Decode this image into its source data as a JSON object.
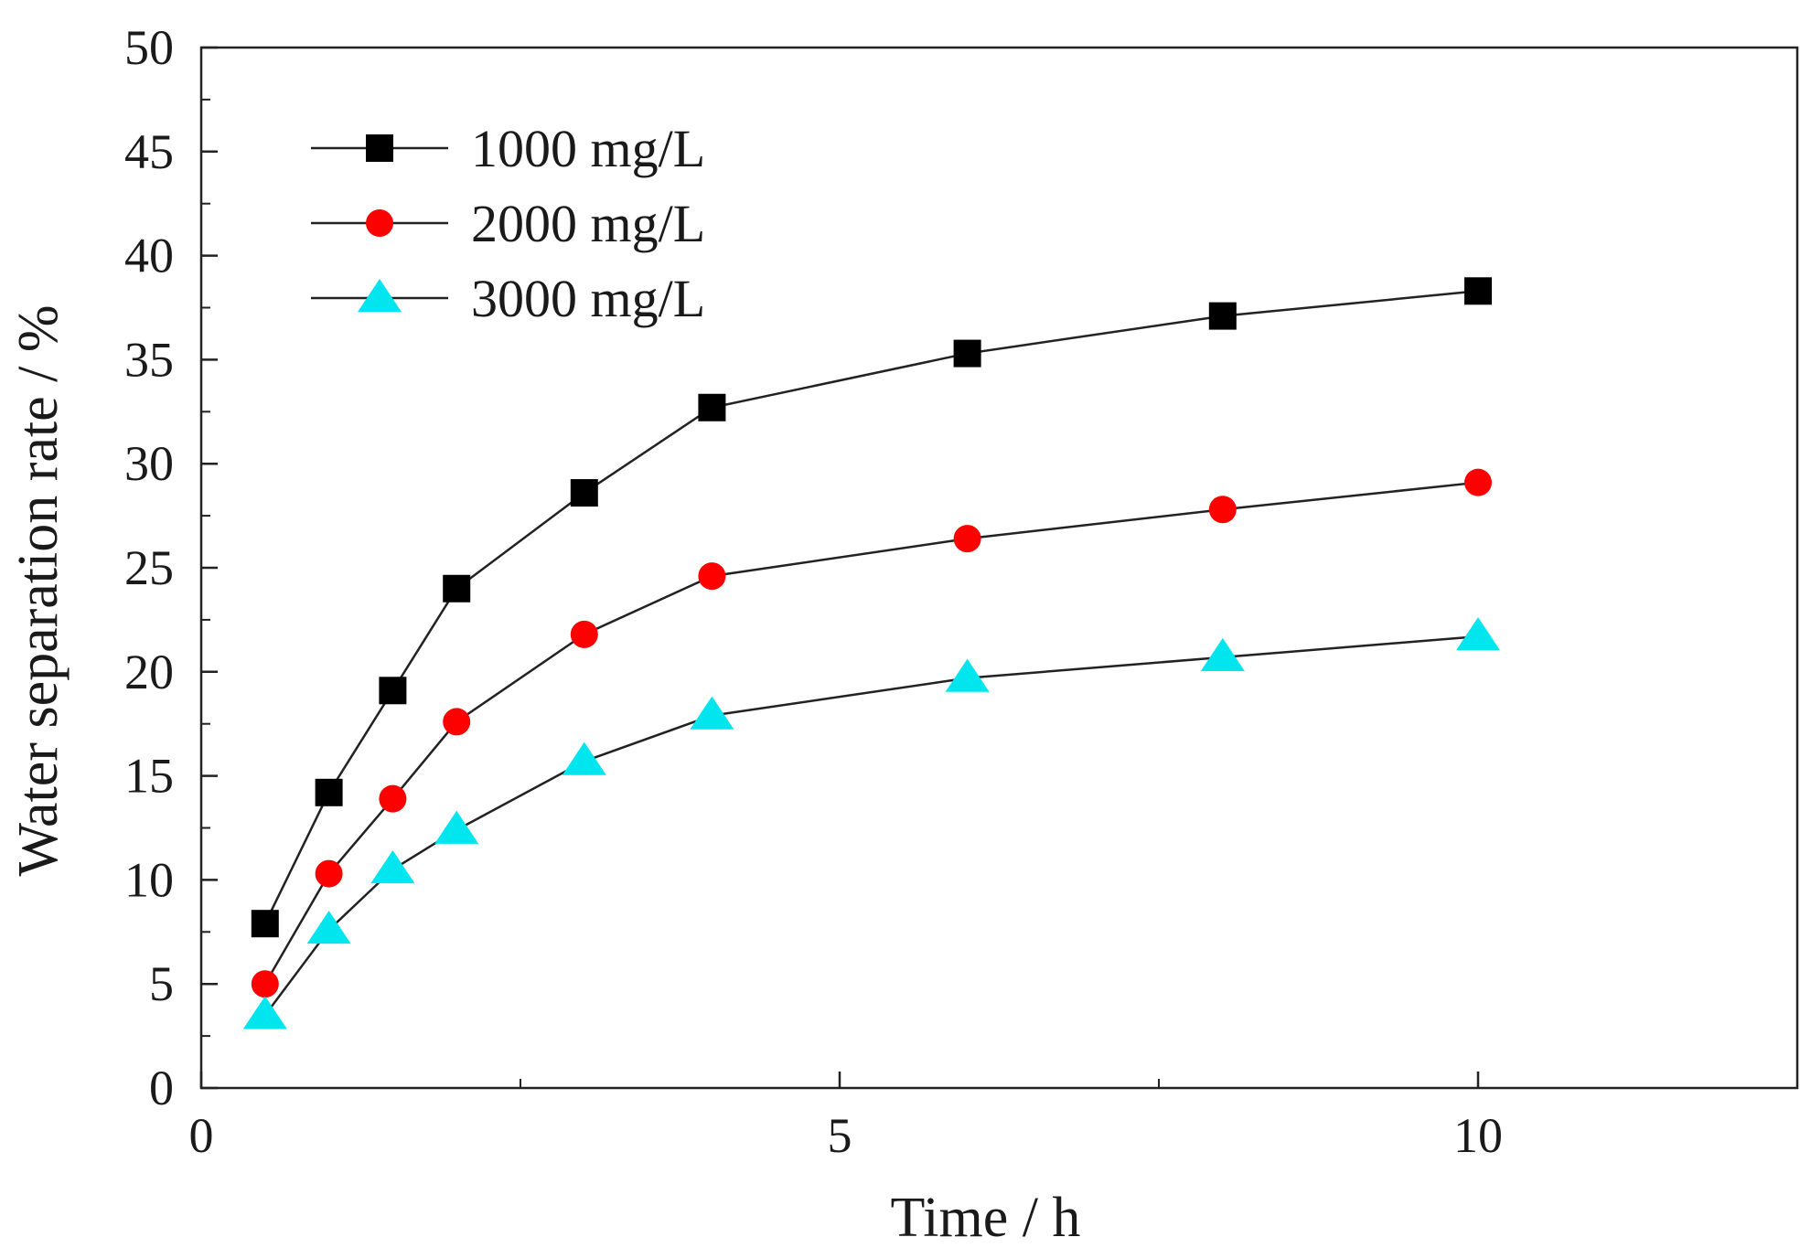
{
  "chart_data": {
    "type": "line",
    "title": "",
    "xlabel": "Time / h",
    "ylabel": "Water separation rate / %",
    "xlim": [
      0,
      12.5
    ],
    "ylim": [
      0,
      50
    ],
    "xticks": [
      0,
      5,
      10
    ],
    "xminor": [
      2.5,
      7.5
    ],
    "yticks": [
      0,
      5,
      10,
      15,
      20,
      25,
      30,
      35,
      40,
      45,
      50
    ],
    "grid": false,
    "legend_position": "top-left",
    "line_color": "#222222",
    "series": [
      {
        "name": "1000 mg/L",
        "marker": "square",
        "color": "#000000",
        "x": [
          0.5,
          1,
          1.5,
          2,
          3,
          4,
          6,
          8,
          10
        ],
        "y": [
          7.9,
          14.2,
          19.1,
          24.0,
          28.6,
          32.7,
          35.3,
          37.1,
          38.3
        ]
      },
      {
        "name": "2000 mg/L",
        "marker": "circle",
        "color": "#ff0000",
        "x": [
          0.5,
          1,
          1.5,
          2,
          3,
          4,
          6,
          8,
          10
        ],
        "y": [
          5.0,
          10.3,
          13.9,
          17.6,
          21.8,
          24.6,
          26.4,
          27.8,
          29.1
        ]
      },
      {
        "name": "3000 mg/L",
        "marker": "triangle",
        "color": "#00e5ee",
        "x": [
          0.5,
          1,
          1.5,
          2,
          3,
          4,
          6,
          8,
          10
        ],
        "y": [
          3.5,
          7.6,
          10.5,
          12.4,
          15.7,
          17.9,
          19.7,
          20.7,
          21.7
        ]
      }
    ]
  }
}
